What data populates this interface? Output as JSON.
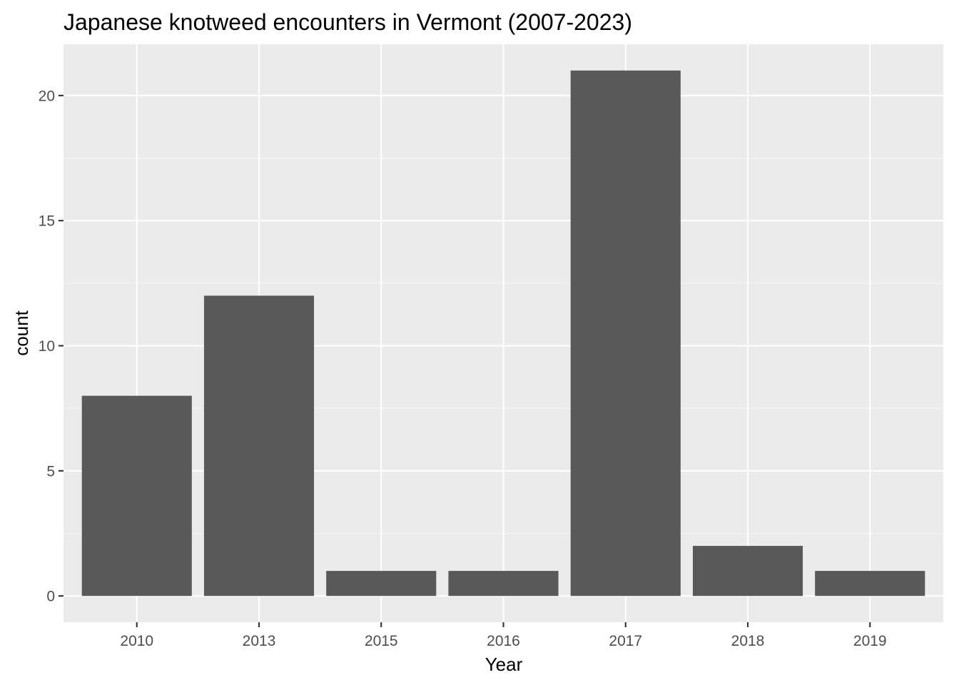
{
  "chart_data": {
    "type": "bar",
    "title": "Japanese knotweed encounters in Vermont (2007-2023)",
    "xlabel": "Year",
    "ylabel": "count",
    "categories": [
      "2010",
      "2013",
      "2015",
      "2016",
      "2017",
      "2018",
      "2019"
    ],
    "values": [
      8,
      12,
      1,
      1,
      21,
      2,
      1
    ],
    "ylim": [
      -1.05,
      22.05
    ],
    "yticks": [
      0,
      5,
      10,
      15,
      20
    ],
    "grid": true,
    "legend": "none",
    "colors": {
      "bar": "#595959",
      "panel_background": "#EBEBEB",
      "grid_major": "#FFFFFF",
      "grid_minor": "#F5F5F5",
      "tick_mark": "#333333",
      "tick_label": "#4D4D4D"
    }
  }
}
